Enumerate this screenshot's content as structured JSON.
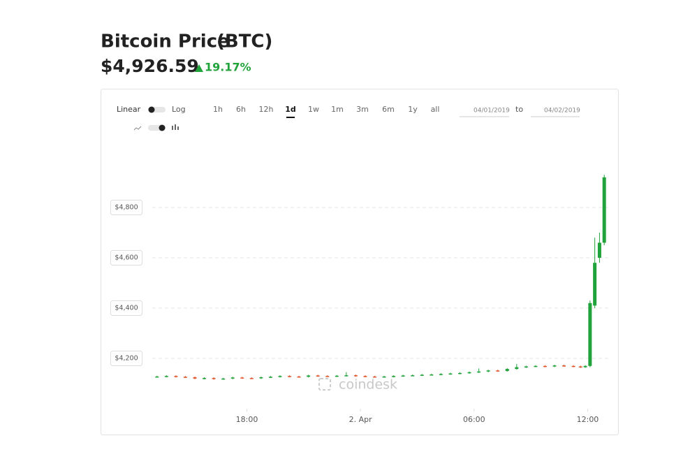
{
  "page": {
    "title": "Bitcoin Price",
    "ticker": "(BTC)",
    "price": "$4,926.59",
    "change": "19.17%",
    "scale_options": [
      "Linear",
      "Log"
    ],
    "ranges": [
      "1h",
      "6h",
      "12h",
      "1d",
      "1w",
      "1m",
      "3m",
      "6m",
      "1y",
      "all"
    ],
    "active_range_index": 3,
    "date_from": "04/01/2019",
    "date_sep": "to",
    "date_to": "04/02/2019",
    "watermark": "coindesk"
  },
  "chart_data": {
    "type": "candlestick",
    "x": [
      0.25,
      0.75,
      1.25,
      1.75,
      2.25,
      2.75,
      3.25,
      3.75,
      4.25,
      4.75,
      5.25,
      5.75,
      6.25,
      6.75,
      7.25,
      7.75,
      8.25,
      8.75,
      9.25,
      9.75,
      10.25,
      10.75,
      11.25,
      11.75,
      12.25,
      12.75,
      13.25,
      13.75,
      14.25,
      14.75,
      15.25,
      15.75,
      16.25,
      16.75,
      17.25,
      17.75,
      18.25,
      18.75,
      19.25,
      19.75,
      20.25,
      20.75,
      21.25,
      21.75,
      22.25,
      22.625,
      22.875,
      23.125,
      23.375,
      23.625,
      23.875
    ],
    "open": [
      4127,
      4128,
      4130,
      4127,
      4125,
      4120,
      4122,
      4118,
      4120,
      4124,
      4122,
      4121,
      4125,
      4127,
      4130,
      4128,
      4127,
      4132,
      4130,
      4129,
      4131,
      4133,
      4130,
      4128,
      4127,
      4128,
      4130,
      4132,
      4133,
      4135,
      4136,
      4138,
      4140,
      4142,
      4145,
      4148,
      4152,
      4150,
      4158,
      4165,
      4168,
      4170,
      4168,
      4172,
      4170,
      4168,
      4165,
      4170,
      4410,
      4600,
      4660
    ],
    "high": [
      4131,
      4133,
      4133,
      4130,
      4128,
      4125,
      4125,
      4123,
      4127,
      4127,
      4125,
      4128,
      4130,
      4133,
      4133,
      4131,
      4135,
      4135,
      4133,
      4134,
      4145,
      4136,
      4133,
      4131,
      4131,
      4133,
      4135,
      4136,
      4138,
      4139,
      4141,
      4143,
      4145,
      4148,
      4160,
      4155,
      4155,
      4161,
      4178,
      4171,
      4173,
      4173,
      4175,
      4175,
      4173,
      4171,
      4173,
      4430,
      4680,
      4700,
      4930
    ],
    "low": [
      4124,
      4125,
      4124,
      4122,
      4117,
      4117,
      4115,
      4115,
      4117,
      4119,
      4118,
      4118,
      4122,
      4124,
      4125,
      4124,
      4124,
      4127,
      4126,
      4126,
      4128,
      4127,
      4125,
      4124,
      4124,
      4125,
      4127,
      4129,
      4130,
      4132,
      4133,
      4135,
      4137,
      4139,
      4142,
      4145,
      4147,
      4147,
      4155,
      4162,
      4165,
      4165,
      4165,
      4167,
      4165,
      4162,
      4162,
      4165,
      4400,
      4580,
      4650
    ],
    "close": [
      4128,
      4130,
      4127,
      4125,
      4120,
      4122,
      4118,
      4120,
      4124,
      4122,
      4121,
      4125,
      4127,
      4130,
      4128,
      4127,
      4132,
      4130,
      4129,
      4131,
      4133,
      4130,
      4128,
      4127,
      4128,
      4130,
      4132,
      4133,
      4135,
      4136,
      4138,
      4140,
      4142,
      4145,
      4148,
      4152,
      4150,
      4158,
      4165,
      4168,
      4170,
      4168,
      4172,
      4170,
      4168,
      4165,
      4170,
      4420,
      4580,
      4660,
      4920
    ],
    "up_color": "#21a33b",
    "down_color": "#e0552c",
    "xlim": [
      0,
      24.2
    ],
    "xticks": [
      {
        "value": 5,
        "label": "18:00"
      },
      {
        "value": 11,
        "label": "2. Apr"
      },
      {
        "value": 17,
        "label": "06:00"
      },
      {
        "value": 23,
        "label": "12:00"
      }
    ],
    "ylim": [
      4000,
      5000
    ],
    "yticks": [
      {
        "value": 4200,
        "label": "$4,200"
      },
      {
        "value": 4400,
        "label": "$4,400"
      },
      {
        "value": 4600,
        "label": "$4,600"
      },
      {
        "value": 4800,
        "label": "$4,800"
      }
    ],
    "grid": true
  }
}
